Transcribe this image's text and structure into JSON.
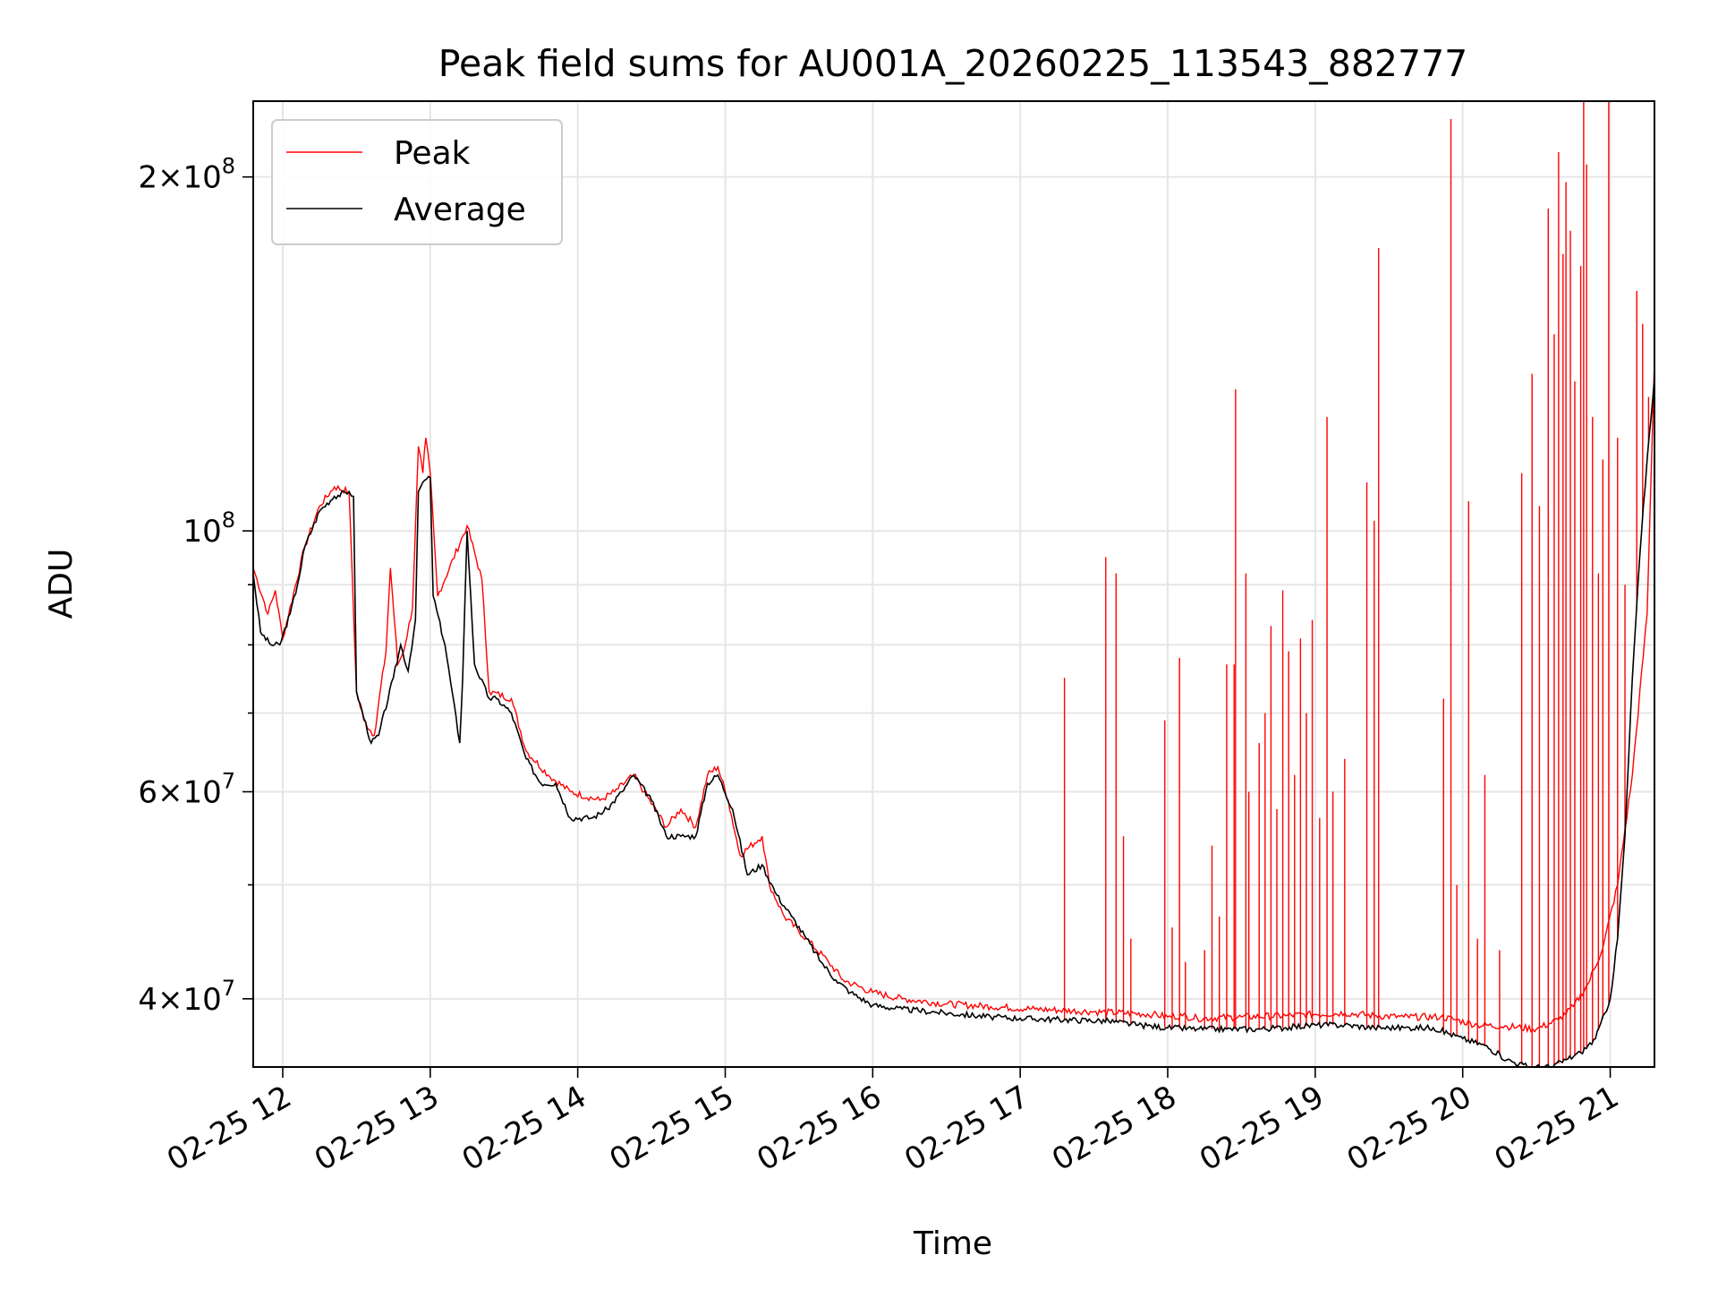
{
  "chart_data": {
    "type": "line",
    "title": "Peak field sums for AU001A_20260225_113543_882777",
    "xlabel": "Time",
    "ylabel": "ADU",
    "y_scale": "log",
    "x_range_hours": [
      11.8,
      21.3
    ],
    "ylim": [
      35000000,
      232000000
    ],
    "grid": true,
    "legend_position": "top-left",
    "x_ticks": [
      {
        "value": 12,
        "label": "02-25 12"
      },
      {
        "value": 13,
        "label": "02-25 13"
      },
      {
        "value": 14,
        "label": "02-25 14"
      },
      {
        "value": 15,
        "label": "02-25 15"
      },
      {
        "value": 16,
        "label": "02-25 16"
      },
      {
        "value": 17,
        "label": "02-25 17"
      },
      {
        "value": 18,
        "label": "02-25 18"
      },
      {
        "value": 19,
        "label": "02-25 19"
      },
      {
        "value": 20,
        "label": "02-25 20"
      },
      {
        "value": 21,
        "label": "02-25 21"
      }
    ],
    "y_ticks": [
      {
        "value": 40000000,
        "base": "4",
        "exp": "7"
      },
      {
        "value": 60000000,
        "base": "6",
        "exp": "7"
      },
      {
        "value": 100000000,
        "base": "",
        "exp": "8"
      },
      {
        "value": 200000000,
        "base": "2",
        "exp": "8"
      }
    ],
    "y_minor_ticks": [
      50000000,
      70000000,
      80000000,
      90000000
    ],
    "series": [
      {
        "name": "Average",
        "color": "#000000",
        "x": [
          11.8,
          11.85,
          11.92,
          11.98,
          12.05,
          12.1,
          12.15,
          12.25,
          12.35,
          12.45,
          12.48,
          12.5,
          12.6,
          12.65,
          12.75,
          12.8,
          12.85,
          12.9,
          12.92,
          12.95,
          13.0,
          13.02,
          13.1,
          13.2,
          13.22,
          13.25,
          13.3,
          13.4,
          13.45,
          13.55,
          13.65,
          13.75,
          13.85,
          13.95,
          14.1,
          14.2,
          14.3,
          14.38,
          14.5,
          14.6,
          14.7,
          14.8,
          14.88,
          14.95,
          15.05,
          15.15,
          15.25,
          15.35,
          15.45,
          15.55,
          15.65,
          15.75,
          15.85,
          16.0,
          16.2,
          16.4,
          16.6,
          16.8,
          17.0,
          17.3,
          17.6,
          17.8,
          18.0,
          18.2,
          18.4,
          18.6,
          18.8,
          19.0,
          19.2,
          19.4,
          19.6,
          19.8,
          20.0,
          20.15,
          20.3,
          20.45,
          20.6,
          20.7,
          20.8,
          20.9,
          21.0,
          21.05,
          21.1,
          21.15,
          21.2,
          21.25,
          21.3
        ],
        "y": [
          92000000,
          82000000,
          80000000,
          80000000,
          85000000,
          90000000,
          97000000,
          104000000,
          107000000,
          108000000,
          107000000,
          73000000,
          66000000,
          67000000,
          75000000,
          80000000,
          76000000,
          84000000,
          108000000,
          110000000,
          111000000,
          88000000,
          80000000,
          66000000,
          75000000,
          100000000,
          77000000,
          72000000,
          72000000,
          70000000,
          64000000,
          61000000,
          61000000,
          57000000,
          57000000,
          58000000,
          60000000,
          62000000,
          59000000,
          55000000,
          55000000,
          55000000,
          61000000,
          62000000,
          58000000,
          51000000,
          52000000,
          49000000,
          47000000,
          45000000,
          43000000,
          41500000,
          40500000,
          39500000,
          39200000,
          39000000,
          38800000,
          38600000,
          38500000,
          38400000,
          38300000,
          38000000,
          37800000,
          37700000,
          37700000,
          37700000,
          37800000,
          38000000,
          38000000,
          37800000,
          37800000,
          37800000,
          37000000,
          36500000,
          35500000,
          35000000,
          35000000,
          35500000,
          36000000,
          37000000,
          40000000,
          45000000,
          55000000,
          75000000,
          95000000,
          115000000,
          135000000
        ]
      },
      {
        "name": "Peak",
        "color": "#ff0000",
        "x": [
          11.8,
          11.9,
          11.95,
          12.0,
          12.15,
          12.25,
          12.35,
          12.45,
          12.5,
          12.55,
          12.62,
          12.7,
          12.73,
          12.78,
          12.82,
          12.88,
          12.92,
          12.95,
          12.97,
          13.0,
          13.05,
          13.25,
          13.35,
          13.4,
          13.55,
          13.65,
          13.8,
          13.95,
          14.15,
          14.25,
          14.38,
          14.45,
          14.6,
          14.7,
          14.8,
          14.88,
          14.95,
          15.02,
          15.1,
          15.25,
          15.3,
          15.4,
          15.55,
          15.7,
          15.8,
          16.0,
          16.2,
          16.5,
          16.8,
          17.1,
          17.5,
          17.9,
          18.0,
          18.1,
          18.2,
          18.5,
          18.8,
          19.0,
          19.2,
          19.4,
          19.6,
          19.85,
          19.95,
          20.1,
          20.3,
          20.5,
          20.65,
          20.75,
          20.85,
          20.95,
          21.05,
          21.15,
          21.25,
          21.3
        ],
        "y": [
          93000000,
          85000000,
          89000000,
          81000000,
          97000000,
          105000000,
          109000000,
          108000000,
          73000000,
          69000000,
          67000000,
          79000000,
          93000000,
          77000000,
          79000000,
          86000000,
          118000000,
          112000000,
          120000000,
          112000000,
          88000000,
          101000000,
          91000000,
          73000000,
          72000000,
          65000000,
          62000000,
          60000000,
          59000000,
          60000000,
          62000000,
          60000000,
          56000000,
          58000000,
          56000000,
          62000000,
          63000000,
          59000000,
          53000000,
          55000000,
          50000000,
          47000000,
          45000000,
          43000000,
          41500000,
          40500000,
          40000000,
          39600000,
          39400000,
          39200000,
          39000000,
          38800000,
          38600000,
          38700000,
          38500000,
          38600000,
          38700000,
          38800000,
          38900000,
          38700000,
          38600000,
          38600000,
          38400000,
          38000000,
          37900000,
          37700000,
          38400000,
          39400000,
          41200000,
          44200000,
          50000000,
          62000000,
          85000000,
          140000000
        ]
      }
    ],
    "spikes": [
      {
        "x": 17.3,
        "y": 75000000
      },
      {
        "x": 17.58,
        "y": 95000000
      },
      {
        "x": 17.65,
        "y": 92000000
      },
      {
        "x": 17.7,
        "y": 55000000
      },
      {
        "x": 17.75,
        "y": 45000000
      },
      {
        "x": 17.98,
        "y": 69000000
      },
      {
        "x": 18.03,
        "y": 46000000
      },
      {
        "x": 18.08,
        "y": 78000000
      },
      {
        "x": 18.12,
        "y": 43000000
      },
      {
        "x": 18.25,
        "y": 44000000
      },
      {
        "x": 18.3,
        "y": 54000000
      },
      {
        "x": 18.35,
        "y": 47000000
      },
      {
        "x": 18.4,
        "y": 77000000
      },
      {
        "x": 18.45,
        "y": 77000000
      },
      {
        "x": 18.46,
        "y": 132000000
      },
      {
        "x": 18.53,
        "y": 92000000
      },
      {
        "x": 18.55,
        "y": 60000000
      },
      {
        "x": 18.62,
        "y": 66000000
      },
      {
        "x": 18.66,
        "y": 70000000
      },
      {
        "x": 18.7,
        "y": 83000000
      },
      {
        "x": 18.74,
        "y": 58000000
      },
      {
        "x": 18.78,
        "y": 89000000
      },
      {
        "x": 18.82,
        "y": 79000000
      },
      {
        "x": 18.86,
        "y": 62000000
      },
      {
        "x": 18.9,
        "y": 81000000
      },
      {
        "x": 18.94,
        "y": 70000000
      },
      {
        "x": 18.98,
        "y": 84000000
      },
      {
        "x": 19.03,
        "y": 57000000
      },
      {
        "x": 19.08,
        "y": 125000000
      },
      {
        "x": 19.12,
        "y": 60000000
      },
      {
        "x": 19.2,
        "y": 64000000
      },
      {
        "x": 19.35,
        "y": 110000000
      },
      {
        "x": 19.4,
        "y": 102000000
      },
      {
        "x": 19.43,
        "y": 174000000
      },
      {
        "x": 19.87,
        "y": 72000000
      },
      {
        "x": 19.92,
        "y": 224000000
      },
      {
        "x": 19.96,
        "y": 50000000
      },
      {
        "x": 20.04,
        "y": 106000000
      },
      {
        "x": 20.1,
        "y": 45000000
      },
      {
        "x": 20.15,
        "y": 62000000
      },
      {
        "x": 20.25,
        "y": 44000000
      },
      {
        "x": 20.4,
        "y": 112000000
      },
      {
        "x": 20.47,
        "y": 136000000
      },
      {
        "x": 20.52,
        "y": 105000000
      },
      {
        "x": 20.58,
        "y": 188000000
      },
      {
        "x": 20.62,
        "y": 147000000
      },
      {
        "x": 20.65,
        "y": 210000000
      },
      {
        "x": 20.68,
        "y": 172000000
      },
      {
        "x": 20.7,
        "y": 198000000
      },
      {
        "x": 20.73,
        "y": 180000000
      },
      {
        "x": 20.76,
        "y": 134000000
      },
      {
        "x": 20.8,
        "y": 168000000
      },
      {
        "x": 20.82,
        "y": 240000000
      },
      {
        "x": 20.84,
        "y": 205000000
      },
      {
        "x": 20.88,
        "y": 125000000
      },
      {
        "x": 20.92,
        "y": 92000000
      },
      {
        "x": 20.95,
        "y": 115000000
      },
      {
        "x": 20.99,
        "y": 240000000
      },
      {
        "x": 21.05,
        "y": 120000000
      },
      {
        "x": 21.1,
        "y": 90000000
      },
      {
        "x": 21.18,
        "y": 160000000
      },
      {
        "x": 21.22,
        "y": 150000000
      },
      {
        "x": 21.26,
        "y": 130000000
      }
    ]
  }
}
